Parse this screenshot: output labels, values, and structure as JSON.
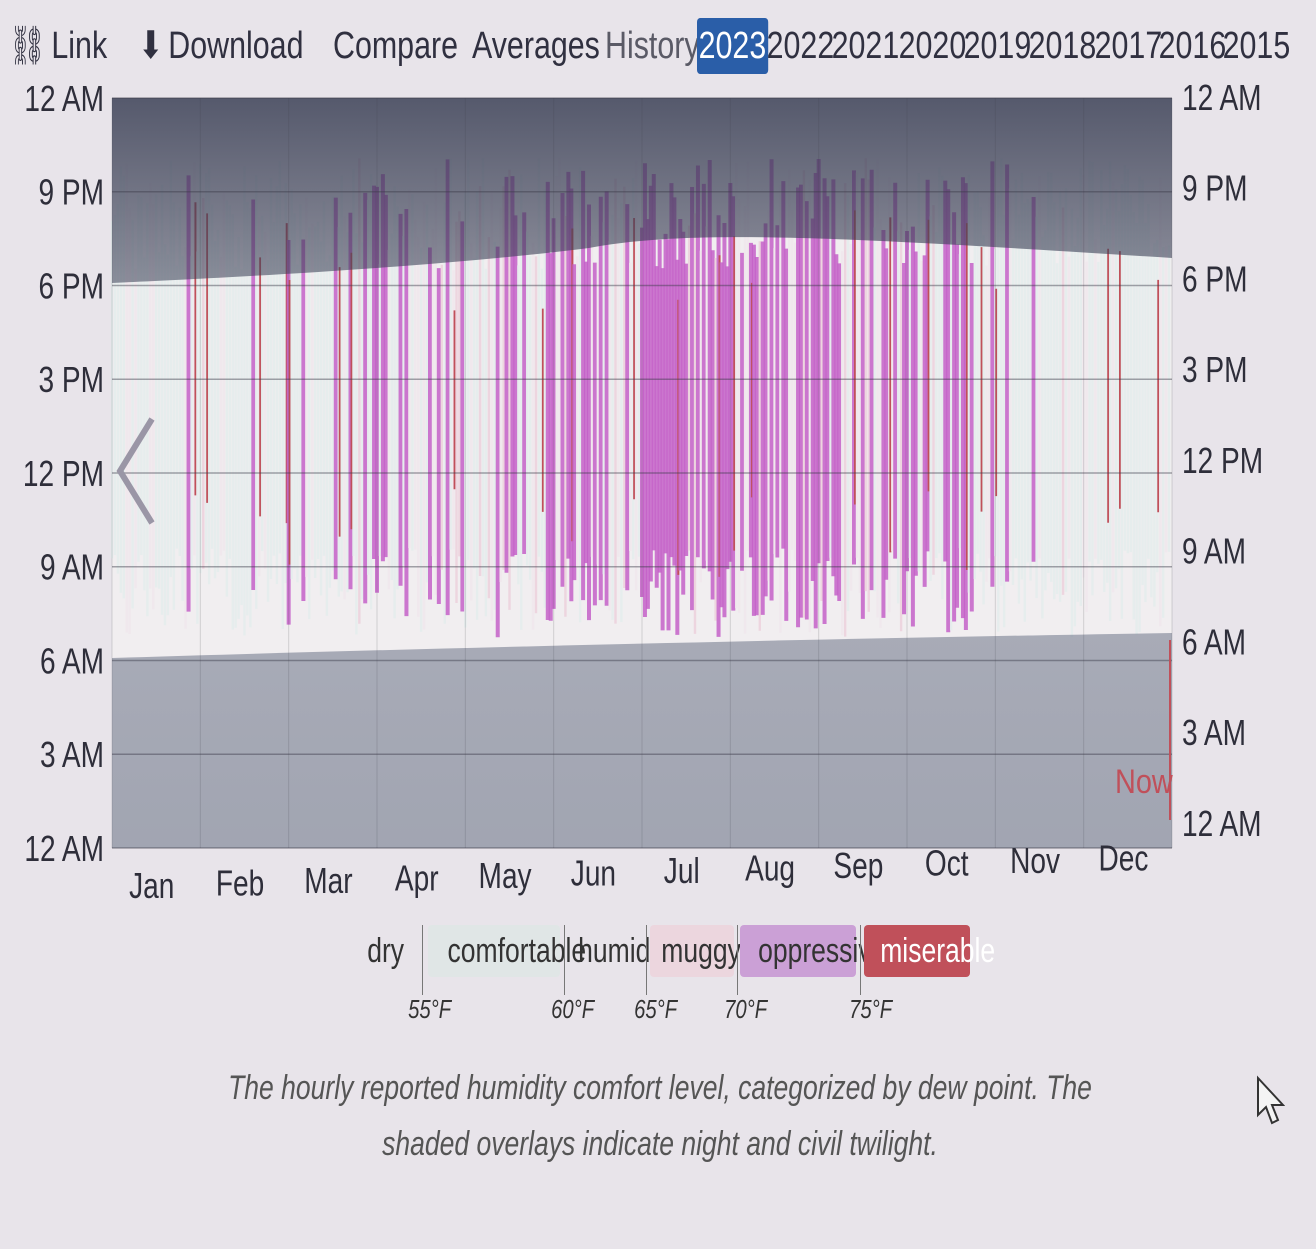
{
  "toolbar": {
    "link_label": "Link",
    "download_label": "Download",
    "compare_label": "Compare",
    "averages_label": "Averages",
    "history_label": "History:",
    "years": [
      "2023",
      "2022",
      "2021",
      "2020",
      "2019",
      "2018",
      "2017",
      "2016",
      "2015"
    ],
    "active_year": "2023"
  },
  "chart_data": {
    "type": "heatmap",
    "x_axis": {
      "labels": [
        "Jan",
        "Feb",
        "Mar",
        "Apr",
        "May",
        "Jun",
        "Jul",
        "Aug",
        "Sep",
        "Oct",
        "Nov",
        "Dec"
      ]
    },
    "y_axis_left": {
      "labels": [
        "12 AM",
        "9 PM",
        "6 PM",
        "3 PM",
        "12 PM",
        "9 AM",
        "6 AM",
        "3 AM",
        "12 AM"
      ]
    },
    "y_axis_right": {
      "labels": [
        "12 AM",
        "9 PM",
        "6 PM",
        "3 PM",
        "12 PM",
        "9 AM",
        "6 AM",
        "3 AM",
        "12 AM"
      ]
    },
    "now_label": "Now",
    "categories": [
      {
        "name": "dry",
        "color": "#f3f0ee"
      },
      {
        "name": "comfortable",
        "color": "#e4ecec"
      },
      {
        "name": "humid",
        "color": "#f0e6ec"
      },
      {
        "name": "muggy",
        "color": "#ecd0dc"
      },
      {
        "name": "oppressive",
        "color": "#c460c8"
      },
      {
        "name": "miserable",
        "color": "#c0505a"
      }
    ],
    "thresholds": [
      "55°F",
      "60°F",
      "65°F",
      "70°F",
      "75°F"
    ],
    "intensity_by_month": [
      {
        "month": "Jan",
        "level": 0.05
      },
      {
        "month": "Feb",
        "level": 0.08
      },
      {
        "month": "Mar",
        "level": 0.2
      },
      {
        "month": "Apr",
        "level": 0.3
      },
      {
        "month": "May",
        "level": 0.45
      },
      {
        "month": "Jun",
        "level": 0.7
      },
      {
        "month": "Jul",
        "level": 0.95
      },
      {
        "month": "Aug",
        "level": 0.9
      },
      {
        "month": "Sep",
        "level": 0.75
      },
      {
        "month": "Oct",
        "level": 0.3
      },
      {
        "month": "Nov",
        "level": 0.15
      },
      {
        "month": "Dec",
        "level": 0.05
      }
    ],
    "overlays": "night and civil twilight",
    "grid": true
  },
  "caption": "The hourly reported humidity comfort level, categorized by dew point. The shaded overlays indicate night and civil twilight."
}
